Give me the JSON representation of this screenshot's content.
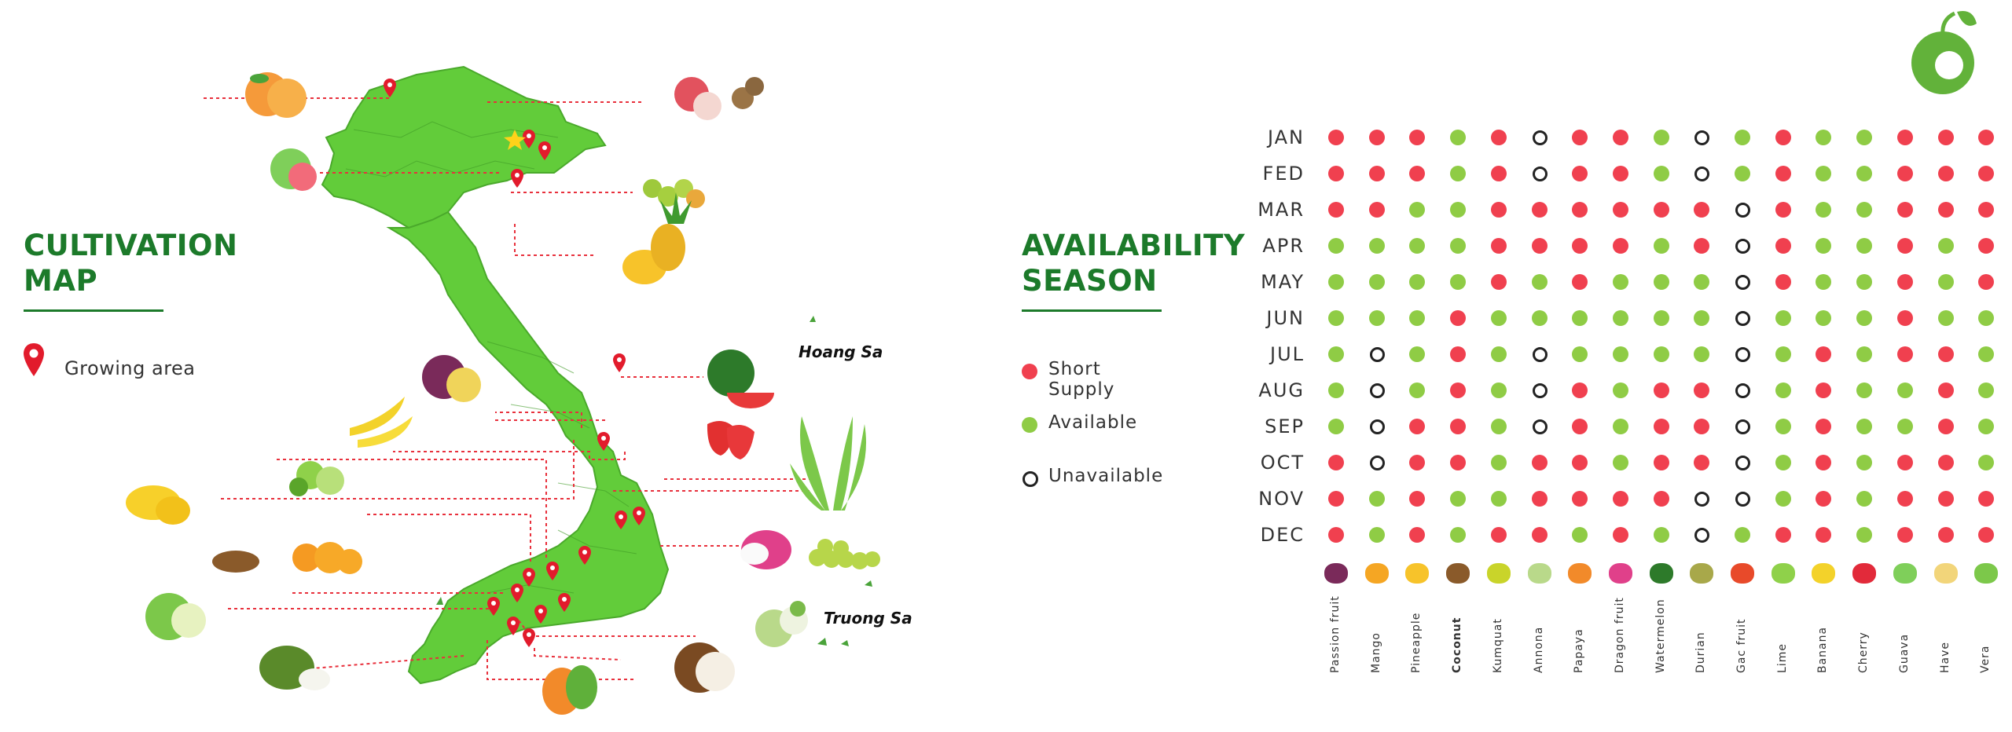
{
  "cultivation": {
    "title_line1": "CULTIVATION",
    "title_line2": "MAP",
    "legend_growing": "Growing area",
    "island_north": "Hoang Sa",
    "island_south": "Truong Sa"
  },
  "availability": {
    "title_line1": "AVAILABILITY",
    "title_line2": "SEASON",
    "legend": [
      {
        "label": "Short Supply",
        "status": "short",
        "color": "#f0404f"
      },
      {
        "label": "Available",
        "status": "available",
        "color": "#8fcc45"
      },
      {
        "label": "Unavailable",
        "status": "unavailable",
        "color": "#222222"
      }
    ],
    "months": [
      "JAN",
      "FED",
      "MAR",
      "APR",
      "MAY",
      "JUN",
      "JUL",
      "AUG",
      "SEP",
      "OCT",
      "NOV",
      "DEC"
    ],
    "fruits": [
      "Passion fruit",
      "Mango",
      "Pineapple",
      "Coconut",
      "Kumquat",
      "Annona",
      "Papaya",
      "Dragon fruit",
      "Watermelon",
      "Durian",
      "Gac fruit",
      "Lime",
      "Banana",
      "Cherry",
      "Guava",
      "Have",
      "Vera"
    ],
    "grid": [
      "SSSASUSSAUASAASSS",
      "SSSASUSSAUASAASSS",
      "SSAASSSSSSUSAASSS",
      "AAAASSSSASUSAASAS",
      "AAAASASAAAUSAASAS",
      "AAASAAAAAAUAAASAA",
      "AUASAUAAAAUASASSA",
      "AUASAUSASSUASAASA",
      "AUSSAUSASSUASAASA",
      "SUSSASSASSUASASSA",
      "SASAASSSSUUASASSS",
      "SASASSASAUASSASSS"
    ]
  },
  "colors": {
    "green_title": "#1c7a2a",
    "map_green": "#62cc3a",
    "short": "#f0404f",
    "available": "#8fcc45",
    "unavailable": "#222222",
    "arrow": "#e8303c"
  }
}
